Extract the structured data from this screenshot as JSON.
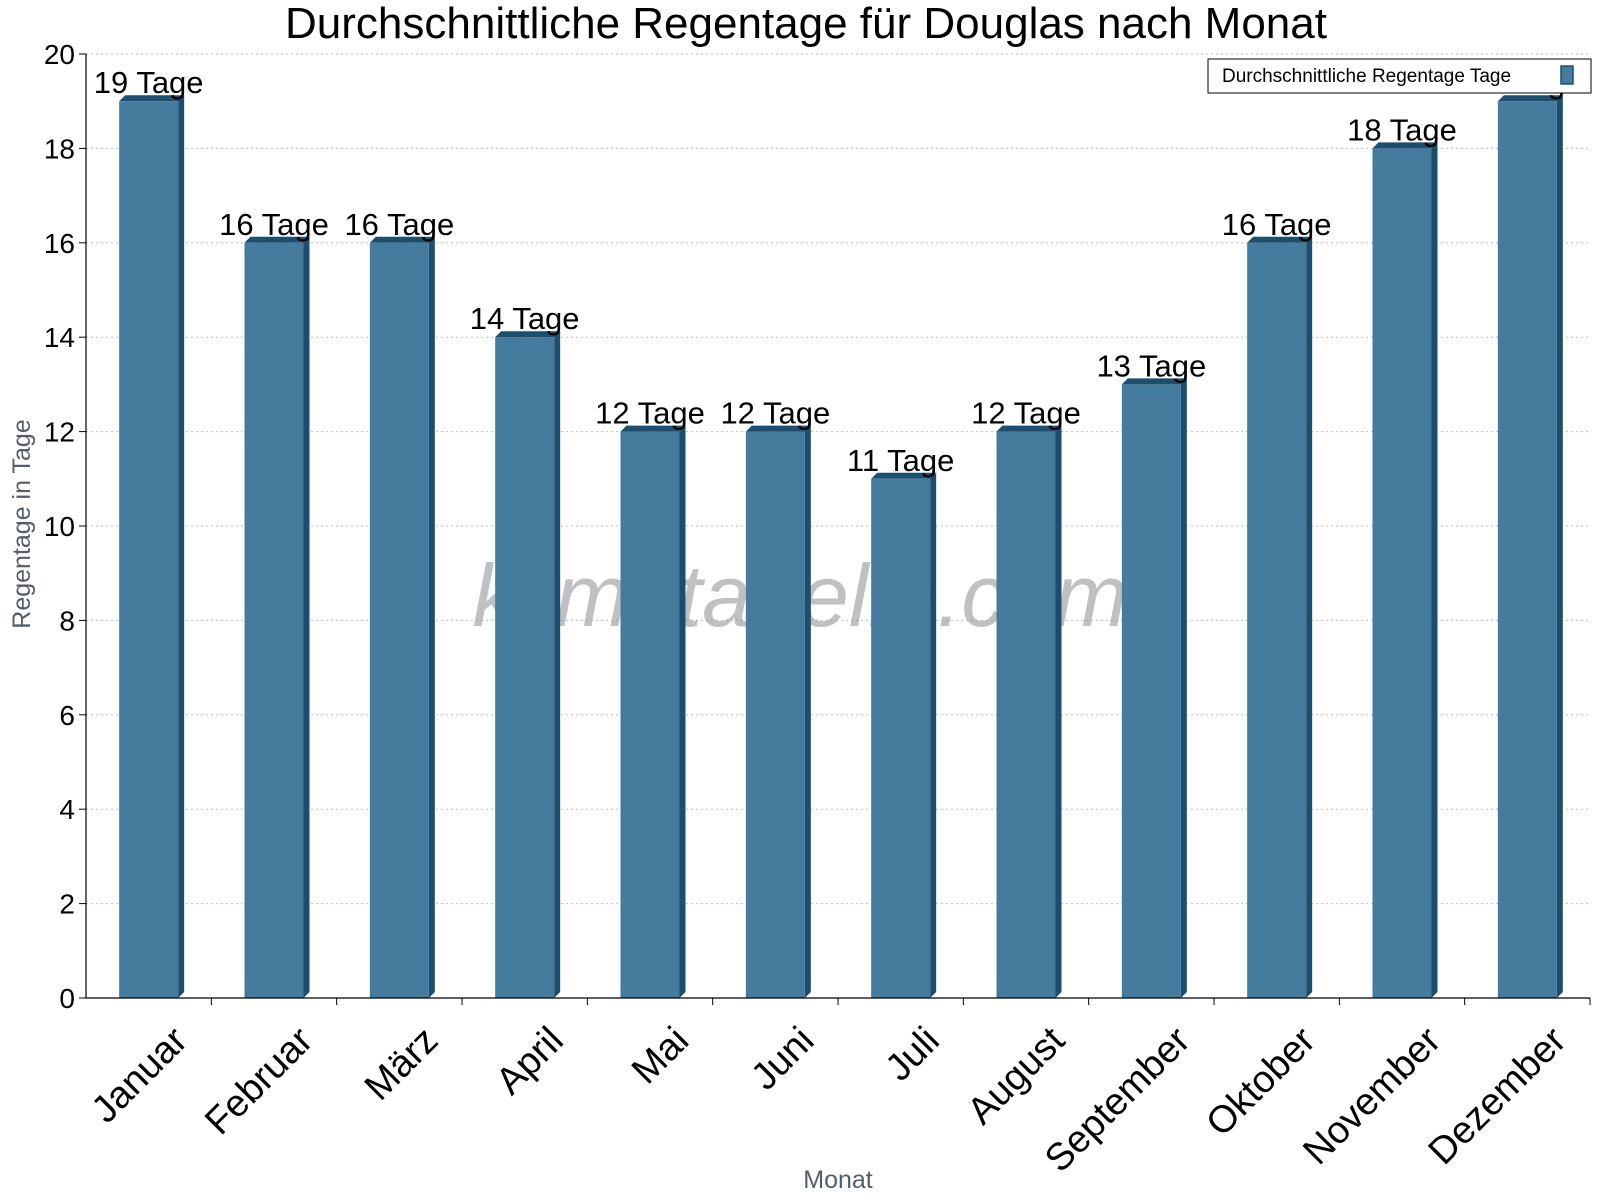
{
  "chart_data": {
    "type": "bar",
    "title": "Durchschnittliche Regentage für Douglas nach Monat",
    "xlabel": "Monat",
    "ylabel": "Regentage in Tage",
    "ylim": [
      0,
      20
    ],
    "yticks": [
      0,
      2,
      4,
      6,
      8,
      10,
      12,
      14,
      16,
      18,
      20
    ],
    "categories": [
      "Januar",
      "Februar",
      "März",
      "April",
      "Mai",
      "Juni",
      "Juli",
      "August",
      "September",
      "Oktober",
      "November",
      "Dezember"
    ],
    "series": [
      {
        "name": "Durchschnittliche Regentage Tage",
        "values": [
          19,
          16,
          16,
          14,
          12,
          12,
          11,
          12,
          13,
          16,
          18,
          19
        ],
        "labels": [
          "19 Tage",
          "16 Tage",
          "16 Tage",
          "14 Tage",
          "12 Tage",
          "12 Tage",
          "11 Tage",
          "12 Tage",
          "13 Tage",
          "16 Tage",
          "18 Tage",
          "19 Tage"
        ]
      }
    ],
    "grid": true,
    "legend": "top-right",
    "colors": {
      "bar": "#457b9d",
      "bar_dark": "#1d4e6e"
    }
  },
  "watermark": "klimatabelle.com"
}
